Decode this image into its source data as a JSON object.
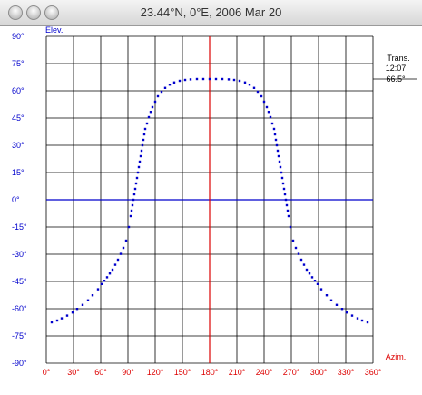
{
  "window": {
    "title": "23.44°N, 0°E, 2006 Mar 20"
  },
  "colors": {
    "y_axis": "#0000cc",
    "x_axis": "#dd0000",
    "series": "#0000cc",
    "horizon": "#0000cc",
    "transit": "#dd0000"
  },
  "chart_data": {
    "type": "scatter",
    "title": "",
    "ylabel": "Elev.",
    "xlabel": "Azim.",
    "xlim": [
      0,
      360
    ],
    "ylim": [
      -90,
      90
    ],
    "x_ticks": [
      "0°",
      "30°",
      "60°",
      "90°",
      "120°",
      "150°",
      "180°",
      "210°",
      "240°",
      "270°",
      "300°",
      "330°",
      "360°"
    ],
    "y_ticks": [
      "90°",
      "75°",
      "60°",
      "45°",
      "30°",
      "15°",
      "0°",
      "-15°",
      "-30°",
      "-45°",
      "-60°",
      "-75°",
      "-90°"
    ],
    "x_tick_values": [
      0,
      30,
      60,
      90,
      120,
      150,
      180,
      210,
      240,
      270,
      300,
      330,
      360
    ],
    "y_tick_values": [
      90,
      75,
      60,
      45,
      30,
      15,
      0,
      -15,
      -30,
      -45,
      -60,
      -75,
      -90
    ],
    "grid": true,
    "reference_lines": [
      {
        "axis": "y",
        "value": 0,
        "color": "#0000cc"
      },
      {
        "axis": "x",
        "value": 180,
        "color": "#dd0000"
      }
    ],
    "transit": {
      "label": "Trans.",
      "time": "12:07",
      "elevation": "66.5°",
      "value": 66.5
    },
    "series": [
      {
        "x": [
          6,
          12,
          17,
          23,
          29,
          34,
          40,
          46,
          51,
          57,
          61,
          64,
          67,
          70,
          73,
          76,
          79,
          82,
          85,
          88,
          91,
          93,
          94,
          95,
          96,
          97,
          98,
          99,
          100,
          101,
          102,
          103,
          104,
          105,
          106,
          107,
          108,
          109,
          111,
          113,
          115,
          117,
          120,
          123,
          127,
          131,
          136,
          141,
          147,
          153,
          159,
          166,
          173,
          180,
          187,
          194,
          201,
          207,
          213,
          219,
          224,
          229,
          233,
          237,
          240,
          243,
          245,
          247,
          249,
          251,
          252,
          253,
          254,
          255,
          256,
          257,
          258,
          259,
          260,
          261,
          262,
          263,
          264,
          265,
          266,
          267,
          269,
          272,
          275,
          278,
          281,
          284,
          287,
          290,
          293,
          296,
          299,
          303,
          309,
          314,
          320,
          326,
          331,
          337,
          343,
          348,
          354
        ],
        "y": [
          -67.5,
          -66.5,
          -65.3,
          -63.8,
          -62.1,
          -60.1,
          -57.9,
          -55.4,
          -52.6,
          -49.3,
          -46.4,
          -44.6,
          -42.7,
          -40.6,
          -38.5,
          -35.8,
          -33.0,
          -29.8,
          -26.5,
          -22.5,
          -15.0,
          -9.0,
          -6.0,
          -3.0,
          0.0,
          3.0,
          6.0,
          9.0,
          12.0,
          15.0,
          18.0,
          21.0,
          24.0,
          27.0,
          30.0,
          33.0,
          36.0,
          39.0,
          42.0,
          45.5,
          48.4,
          51.0,
          54.0,
          57.0,
          59.5,
          61.6,
          63.4,
          64.6,
          65.5,
          66.0,
          66.3,
          66.5,
          66.5,
          66.5,
          66.5,
          66.5,
          66.3,
          66.0,
          65.5,
          64.6,
          63.4,
          61.6,
          59.5,
          57.0,
          54.0,
          51.0,
          48.4,
          45.5,
          42.0,
          39.0,
          36.0,
          33.0,
          30.0,
          27.0,
          24.0,
          21.0,
          18.0,
          15.0,
          12.0,
          9.0,
          6.0,
          3.0,
          0.0,
          -3.0,
          -6.0,
          -9.0,
          -15.0,
          -22.5,
          -26.5,
          -29.8,
          -33.0,
          -35.8,
          -38.5,
          -40.6,
          -42.7,
          -44.6,
          -46.4,
          -49.3,
          -52.6,
          -55.4,
          -57.9,
          -60.1,
          -62.1,
          -63.8,
          -65.3,
          -66.5,
          -67.5
        ]
      }
    ]
  }
}
